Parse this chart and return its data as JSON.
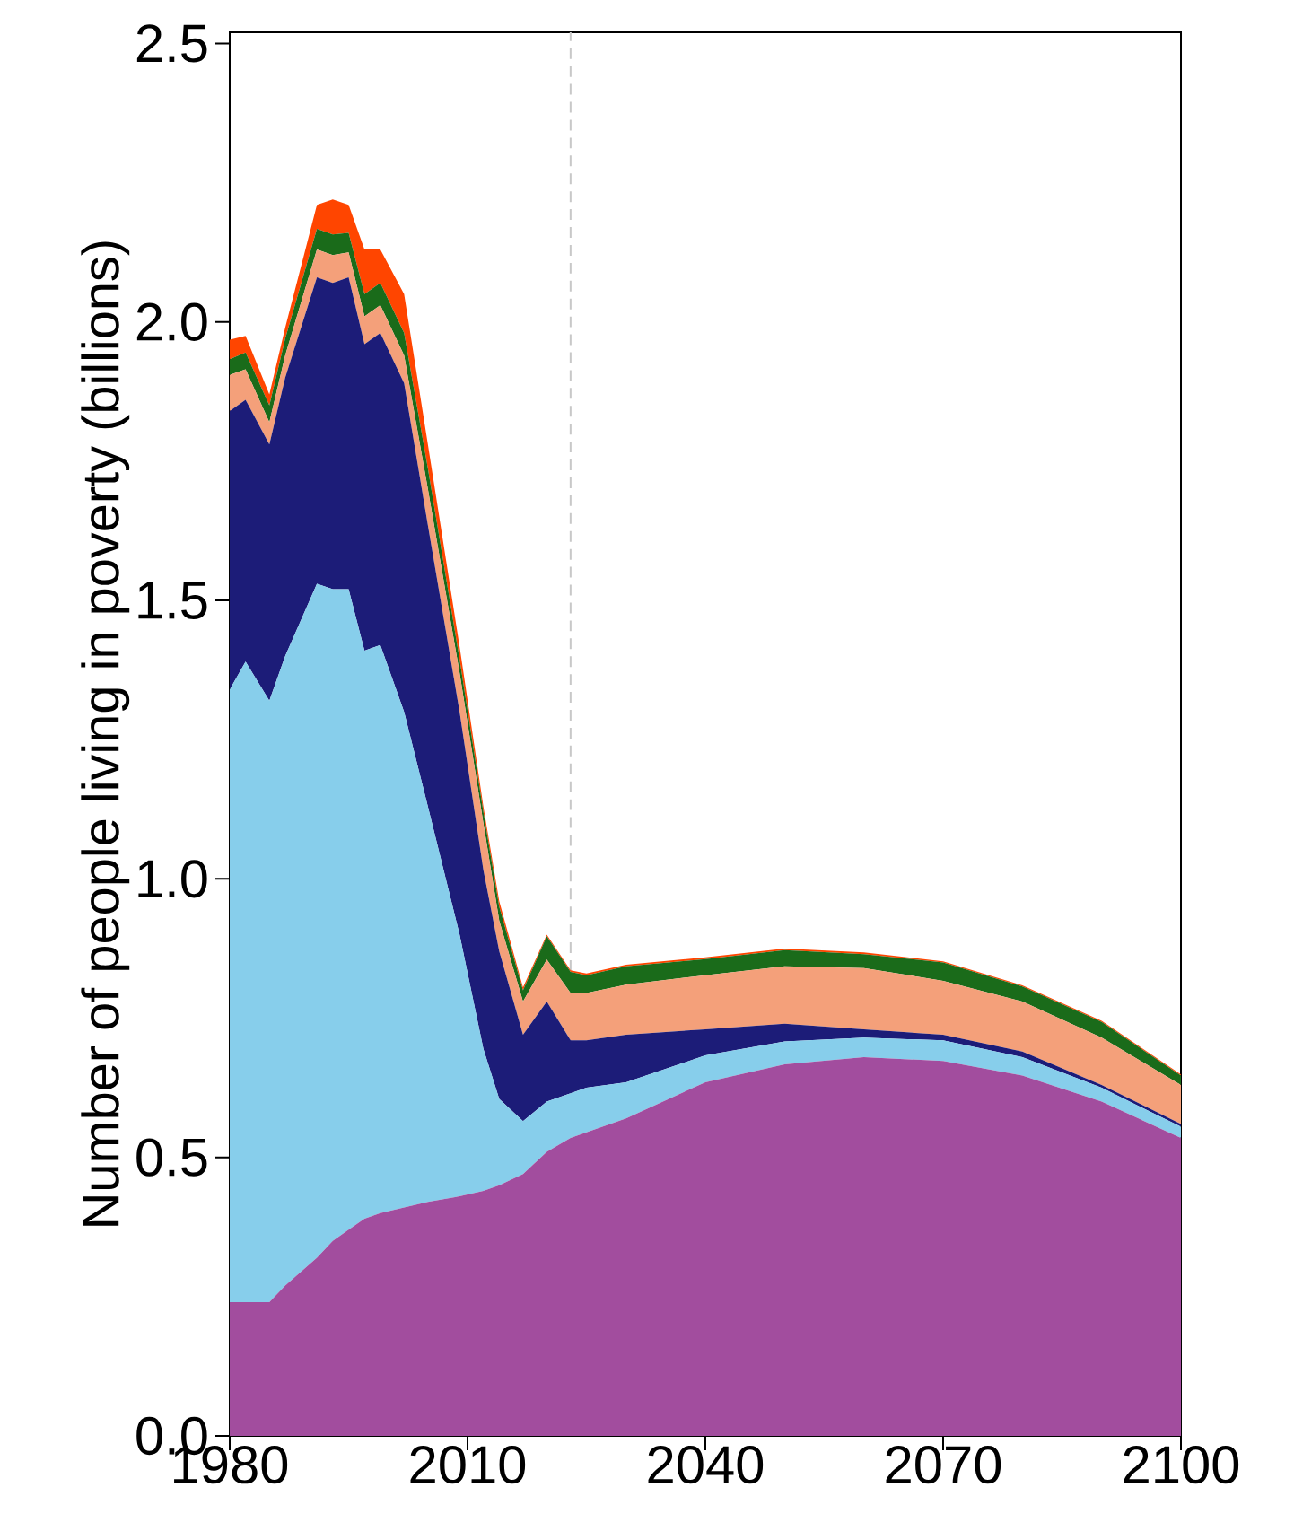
{
  "chart_data": {
    "type": "area",
    "stacked": true,
    "ylabel": "Number of people living in poverty (billions)",
    "x": [
      1980,
      1982,
      1985,
      1987,
      1991,
      1993,
      1995,
      1997,
      1999,
      2002,
      2005,
      2009,
      2012,
      2014,
      2017,
      2020,
      2023,
      2025,
      2030,
      2040,
      2050,
      2060,
      2070,
      2080,
      2090,
      2100
    ],
    "series": [
      {
        "color": "#a24d9e",
        "values": [
          0.24,
          0.24,
          0.24,
          0.27,
          0.32,
          0.35,
          0.37,
          0.39,
          0.4,
          0.41,
          0.42,
          0.43,
          0.44,
          0.45,
          0.47,
          0.51,
          0.535,
          0.545,
          0.57,
          0.635,
          0.667,
          0.68,
          0.673,
          0.647,
          0.6,
          0.535
        ]
      },
      {
        "color": "#87ceeb",
        "values": [
          1.1,
          1.15,
          1.08,
          1.13,
          1.21,
          1.17,
          1.15,
          1.02,
          1.02,
          0.89,
          0.71,
          0.47,
          0.255,
          0.155,
          0.095,
          0.09,
          0.08,
          0.08,
          0.065,
          0.048,
          0.041,
          0.035,
          0.037,
          0.033,
          0.025,
          0.02
        ]
      },
      {
        "color": "#1c1c78",
        "values": [
          0.5,
          0.47,
          0.46,
          0.5,
          0.55,
          0.55,
          0.56,
          0.55,
          0.56,
          0.59,
          0.505,
          0.4,
          0.321,
          0.265,
          0.155,
          0.18,
          0.095,
          0.085,
          0.085,
          0.047,
          0.032,
          0.015,
          0.01,
          0.01,
          0.005,
          0.005
        ]
      },
      {
        "color": "#f4a07a",
        "values": [
          0.065,
          0.055,
          0.04,
          0.04,
          0.05,
          0.05,
          0.045,
          0.05,
          0.05,
          0.05,
          0.065,
          0.07,
          0.084,
          0.055,
          0.06,
          0.075,
          0.085,
          0.085,
          0.09,
          0.097,
          0.103,
          0.11,
          0.097,
          0.09,
          0.085,
          0.07
        ]
      },
      {
        "color": "#1a6b1a",
        "values": [
          0.028,
          0.03,
          0.03,
          0.03,
          0.037,
          0.037,
          0.035,
          0.04,
          0.04,
          0.04,
          0.037,
          0.024,
          0.02,
          0.025,
          0.02,
          0.042,
          0.038,
          0.032,
          0.033,
          0.029,
          0.029,
          0.025,
          0.033,
          0.027,
          0.028,
          0.017
        ]
      },
      {
        "color": "#ff4500",
        "values": [
          0.035,
          0.03,
          0.02,
          0.02,
          0.043,
          0.063,
          0.05,
          0.08,
          0.06,
          0.07,
          0.043,
          0.023,
          0.01,
          0.01,
          0.005,
          0.003,
          0.003,
          0.003,
          0.003,
          0.003,
          0.003,
          0.003,
          0.002,
          0.002,
          0.002,
          0.002
        ]
      }
    ],
    "xlim": [
      1980,
      2100
    ],
    "ylim": [
      0,
      2.52
    ],
    "xticks": [
      1980,
      2010,
      2040,
      2070,
      2100
    ],
    "yticks": [
      {
        "value": 0,
        "label": "0.0"
      },
      {
        "value": 0.5,
        "label": "0.5"
      },
      {
        "value": 1,
        "label": "1.0"
      },
      {
        "value": 1.5,
        "label": "1.5"
      },
      {
        "value": 2,
        "label": "2.0"
      },
      {
        "value": 2.5,
        "label": "2.5"
      }
    ],
    "ref_lines": [
      {
        "axis": "x",
        "value": 2023,
        "color": "#c8c8c8",
        "line_style": "dashed"
      }
    ]
  }
}
